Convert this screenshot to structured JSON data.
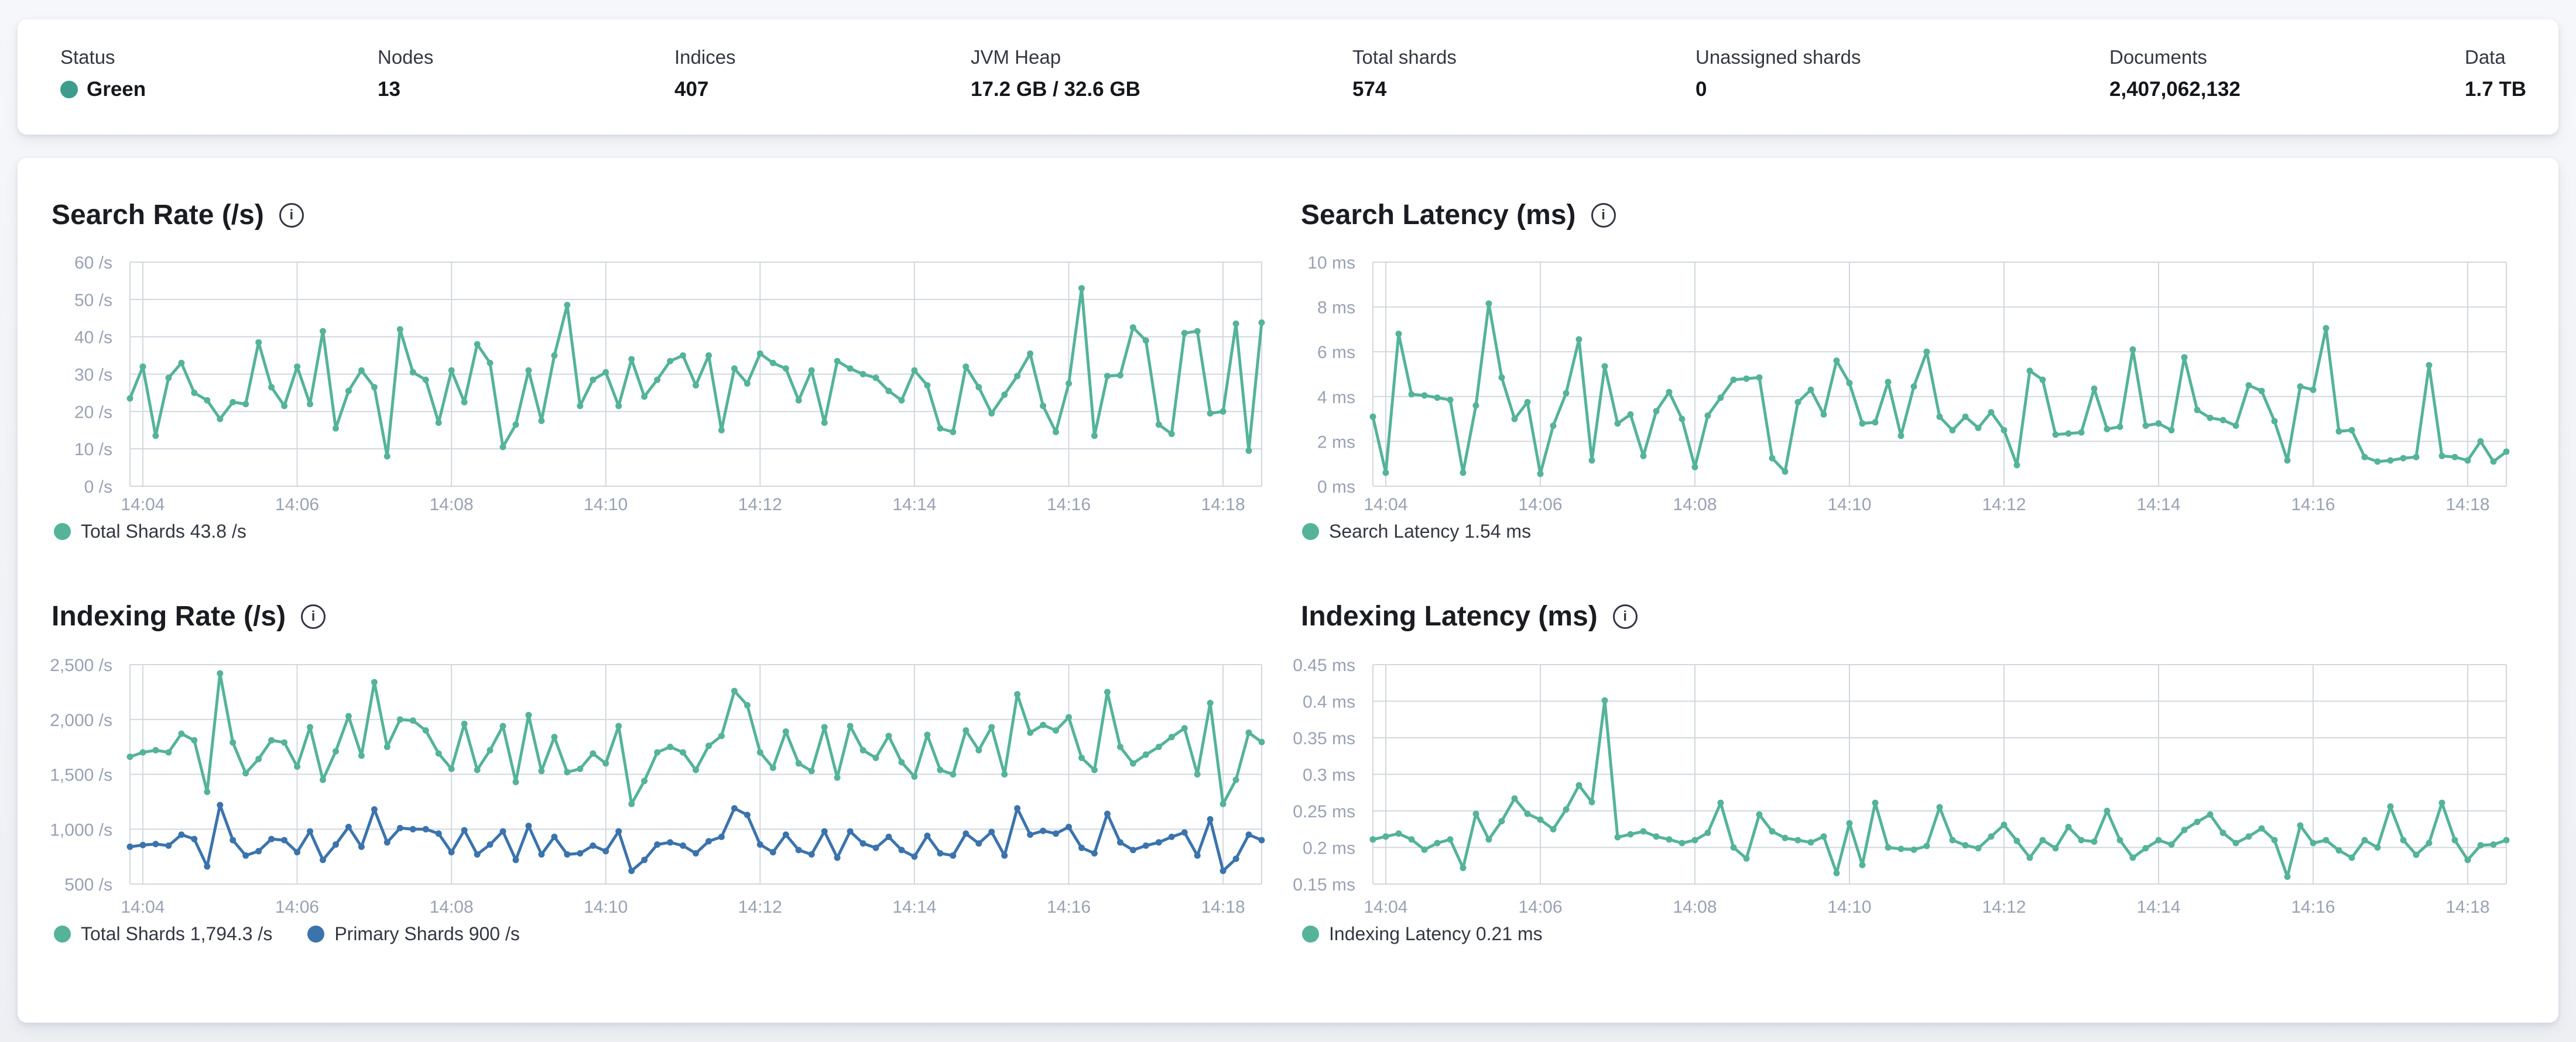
{
  "colors": {
    "status_green": "#3d9c8c",
    "teal": "#54b399",
    "blue": "#3b73ac",
    "axis_text": "#98a2b3",
    "grid_line": "#d3d7dd"
  },
  "status_bar": {
    "items": [
      {
        "label": "Status",
        "value": "Green",
        "dot": true,
        "dot_color": "#3d9c8c"
      },
      {
        "label": "Nodes",
        "value": "13"
      },
      {
        "label": "Indices",
        "value": "407"
      },
      {
        "label": "JVM Heap",
        "value": "17.2 GB / 32.6 GB"
      },
      {
        "label": "Total shards",
        "value": "574"
      },
      {
        "label": "Unassigned shards",
        "value": "0"
      },
      {
        "label": "Documents",
        "value": "2,407,062,132"
      },
      {
        "label": "Data",
        "value": "1.7 TB"
      }
    ]
  },
  "chart_data": [
    {
      "type": "line",
      "name": "search-rate",
      "title": "Search Rate (/s)",
      "position": "top-left",
      "grid": true,
      "legend_position": "bottom",
      "n_points": 89,
      "x_tick_labels": [
        "14:04",
        "14:06",
        "14:08",
        "14:10",
        "14:12",
        "14:14",
        "14:16",
        "14:18"
      ],
      "x_tick_indices": [
        1,
        13,
        25,
        37,
        49,
        61,
        73,
        85
      ],
      "ylim": [
        0,
        60
      ],
      "y_tick_values": [
        0,
        10,
        20,
        30,
        40,
        50,
        60
      ],
      "y_tick_labels": [
        "0 /s",
        "10 /s",
        "20 /s",
        "30 /s",
        "40 /s",
        "50 /s",
        "60 /s"
      ],
      "series": [
        {
          "name": "Total Shards",
          "legend_label": "Total Shards 43.8 /s",
          "color": "#54b399",
          "values": [
            23.5,
            32,
            13.5,
            29,
            33,
            25,
            23,
            18,
            22.5,
            22,
            38.5,
            26.5,
            21.5,
            32,
            22,
            41.5,
            15.5,
            25.5,
            31,
            26.5,
            8,
            42,
            30.5,
            28.5,
            17,
            31,
            22.5,
            38,
            33,
            10.5,
            16.5,
            31,
            17.5,
            35,
            48.5,
            21.5,
            28.5,
            30.5,
            21.5,
            34,
            24,
            28.5,
            33.5,
            35,
            27,
            35,
            15,
            31.5,
            27.5,
            35.5,
            33,
            31.5,
            23,
            31,
            17,
            33.5,
            31.5,
            30,
            29,
            25.5,
            23,
            31,
            27,
            15.5,
            14.5,
            32,
            26.5,
            19.5,
            24.5,
            29.5,
            35.5,
            21.5,
            14.5,
            27.5,
            53,
            13.5,
            29.5,
            29.7,
            42.5,
            39,
            16.5,
            14,
            41,
            41.5,
            19.5,
            20,
            43.5,
            9.5,
            43.8
          ]
        }
      ]
    },
    {
      "type": "line",
      "name": "search-latency",
      "title": "Search Latency (ms)",
      "position": "top-right",
      "grid": true,
      "legend_position": "bottom",
      "n_points": 89,
      "x_tick_labels": [
        "14:04",
        "14:06",
        "14:08",
        "14:10",
        "14:12",
        "14:14",
        "14:16",
        "14:18"
      ],
      "x_tick_indices": [
        1,
        13,
        25,
        37,
        49,
        61,
        73,
        85
      ],
      "ylim": [
        0,
        10
      ],
      "y_tick_values": [
        0,
        2,
        4,
        6,
        8,
        10
      ],
      "y_tick_labels": [
        "0 ms",
        "2 ms",
        "4 ms",
        "6 ms",
        "8 ms",
        "10 ms"
      ],
      "series": [
        {
          "name": "Search Latency",
          "legend_label": "Search Latency 1.54 ms",
          "color": "#54b399",
          "values": [
            3.1,
            0.6,
            6.8,
            4.1,
            4.05,
            3.95,
            3.85,
            0.6,
            3.6,
            8.15,
            4.85,
            3.0,
            3.75,
            0.55,
            2.7,
            4.15,
            6.55,
            1.15,
            5.35,
            2.8,
            3.2,
            1.35,
            3.35,
            4.2,
            3.0,
            0.85,
            3.15,
            3.95,
            4.75,
            4.8,
            4.85,
            1.25,
            0.65,
            3.75,
            4.3,
            3.2,
            5.6,
            4.6,
            2.8,
            2.85,
            4.65,
            2.25,
            4.45,
            6.0,
            3.1,
            2.5,
            3.1,
            2.6,
            3.3,
            2.5,
            0.94,
            5.15,
            4.75,
            2.3,
            2.35,
            2.4,
            4.35,
            2.55,
            2.65,
            6.1,
            2.7,
            2.8,
            2.5,
            5.75,
            3.4,
            3.05,
            2.95,
            2.7,
            4.5,
            4.25,
            2.9,
            1.15,
            4.45,
            4.3,
            7.05,
            2.45,
            2.5,
            1.3,
            1.1,
            1.15,
            1.25,
            1.3,
            5.4,
            1.35,
            1.3,
            1.15,
            2.0,
            1.1,
            1.54
          ]
        }
      ]
    },
    {
      "type": "line",
      "name": "indexing-rate",
      "title": "Indexing Rate (/s)",
      "position": "bottom-left",
      "grid": true,
      "legend_position": "bottom",
      "n_points": 89,
      "x_tick_labels": [
        "14:04",
        "14:06",
        "14:08",
        "14:10",
        "14:12",
        "14:14",
        "14:16",
        "14:18"
      ],
      "x_tick_indices": [
        1,
        13,
        25,
        37,
        49,
        61,
        73,
        85
      ],
      "ylim": [
        500,
        2500
      ],
      "y_tick_values": [
        500,
        1000,
        1500,
        2000,
        2500
      ],
      "y_tick_labels": [
        "500 /s",
        "1,000 /s",
        "1,500 /s",
        "2,000 /s",
        "2,500 /s"
      ],
      "series": [
        {
          "name": "Total Shards",
          "legend_label": "Total Shards 1,794.3 /s",
          "color": "#54b399",
          "values": [
            1660,
            1700,
            1720,
            1700,
            1870,
            1810,
            1340,
            2420,
            1790,
            1510,
            1640,
            1810,
            1790,
            1570,
            1930,
            1450,
            1710,
            2030,
            1670,
            2340,
            1750,
            2000,
            1990,
            1900,
            1690,
            1550,
            1960,
            1540,
            1720,
            1940,
            1430,
            2040,
            1530,
            1840,
            1520,
            1550,
            1690,
            1600,
            1940,
            1230,
            1440,
            1700,
            1750,
            1700,
            1540,
            1760,
            1850,
            2260,
            2130,
            1700,
            1560,
            1890,
            1600,
            1530,
            1930,
            1470,
            1940,
            1720,
            1650,
            1850,
            1610,
            1480,
            1860,
            1540,
            1500,
            1900,
            1720,
            1930,
            1500,
            2230,
            1880,
            1950,
            1900,
            2020,
            1650,
            1540,
            2250,
            1750,
            1600,
            1680,
            1750,
            1840,
            1920,
            1500,
            2150,
            1230,
            1450,
            1880,
            1794.3
          ]
        },
        {
          "name": "Primary Shards",
          "legend_label": "Primary Shards 900 /s",
          "color": "#3b73ac",
          "values": [
            840,
            855,
            865,
            850,
            950,
            910,
            660,
            1220,
            900,
            760,
            800,
            910,
            900,
            790,
            980,
            720,
            860,
            1020,
            840,
            1180,
            880,
            1010,
            1000,
            1000,
            960,
            790,
            990,
            770,
            860,
            980,
            720,
            1030,
            770,
            930,
            770,
            780,
            850,
            800,
            980,
            620,
            720,
            860,
            880,
            850,
            780,
            890,
            930,
            1190,
            1130,
            860,
            790,
            950,
            810,
            770,
            980,
            740,
            980,
            870,
            830,
            930,
            810,
            750,
            940,
            780,
            760,
            960,
            870,
            975,
            760,
            1190,
            950,
            985,
            960,
            1020,
            830,
            780,
            1140,
            880,
            810,
            850,
            880,
            930,
            970,
            760,
            1090,
            620,
            730,
            950,
            900
          ]
        }
      ]
    },
    {
      "type": "line",
      "name": "indexing-latency",
      "title": "Indexing Latency (ms)",
      "position": "bottom-right",
      "grid": true,
      "legend_position": "bottom",
      "n_points": 89,
      "x_tick_labels": [
        "14:04",
        "14:06",
        "14:08",
        "14:10",
        "14:12",
        "14:14",
        "14:16",
        "14:18"
      ],
      "x_tick_indices": [
        1,
        13,
        25,
        37,
        49,
        61,
        73,
        85
      ],
      "ylim": [
        0.15,
        0.45
      ],
      "y_tick_values": [
        0.15,
        0.2,
        0.25,
        0.3,
        0.35,
        0.4,
        0.45
      ],
      "y_tick_labels": [
        "0.15 ms",
        "0.2 ms",
        "0.25 ms",
        "0.3 ms",
        "0.35 ms",
        "0.4 ms",
        "0.45 ms"
      ],
      "series": [
        {
          "name": "Indexing Latency",
          "legend_label": "Indexing Latency 0.21 ms",
          "color": "#54b399",
          "values": [
            0.211,
            0.215,
            0.219,
            0.211,
            0.197,
            0.206,
            0.211,
            0.172,
            0.246,
            0.211,
            0.236,
            0.267,
            0.246,
            0.238,
            0.225,
            0.252,
            0.285,
            0.262,
            0.401,
            0.214,
            0.218,
            0.222,
            0.215,
            0.211,
            0.206,
            0.21,
            0.22,
            0.261,
            0.2,
            0.185,
            0.245,
            0.222,
            0.213,
            0.21,
            0.207,
            0.215,
            0.165,
            0.233,
            0.176,
            0.261,
            0.2,
            0.198,
            0.197,
            0.202,
            0.255,
            0.21,
            0.203,
            0.199,
            0.215,
            0.231,
            0.209,
            0.186,
            0.21,
            0.199,
            0.228,
            0.21,
            0.208,
            0.25,
            0.21,
            0.186,
            0.199,
            0.21,
            0.204,
            0.224,
            0.235,
            0.245,
            0.22,
            0.206,
            0.215,
            0.226,
            0.21,
            0.16,
            0.23,
            0.206,
            0.21,
            0.196,
            0.186,
            0.21,
            0.2,
            0.256,
            0.21,
            0.19,
            0.206,
            0.261,
            0.21,
            0.183,
            0.203,
            0.204,
            0.21
          ]
        }
      ]
    }
  ]
}
